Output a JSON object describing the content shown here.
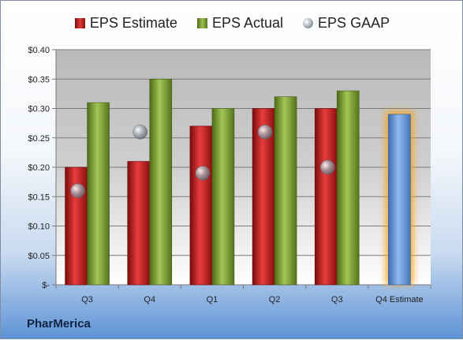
{
  "chart_data": {
    "type": "bar",
    "categories": [
      "Q3",
      "Q4",
      "Q1",
      "Q2",
      "Q3",
      "Q4 Estimate"
    ],
    "series": [
      {
        "name": "EPS Estimate",
        "values": [
          0.2,
          0.21,
          0.27,
          0.3,
          0.3,
          null
        ]
      },
      {
        "name": "EPS Actual",
        "values": [
          0.31,
          0.35,
          0.3,
          0.32,
          0.33,
          0.29
        ]
      },
      {
        "name": "EPS GAAP",
        "values": [
          0.16,
          0.26,
          0.19,
          0.26,
          0.2,
          null
        ]
      }
    ],
    "highlight": {
      "category": "Q4 Estimate",
      "value": 0.29,
      "color": "#6f9fe0"
    },
    "yticks": [
      "$0.40",
      "$0.35",
      "$0.30",
      "$0.25",
      "$0.20",
      "$0.15",
      "$0.10",
      "$0.05",
      "$-"
    ],
    "ylim": [
      0,
      0.4
    ],
    "legend_position": "top",
    "grid": true,
    "colors": {
      "estimate": "#d42b2b",
      "actual": "#8db33f",
      "gaap": "#9aa1aa",
      "forecast": "#6f9fe0"
    }
  },
  "legend": {
    "estimate": "EPS Estimate",
    "actual": "EPS Actual",
    "gaap": "EPS GAAP"
  },
  "company": "PharMerica"
}
